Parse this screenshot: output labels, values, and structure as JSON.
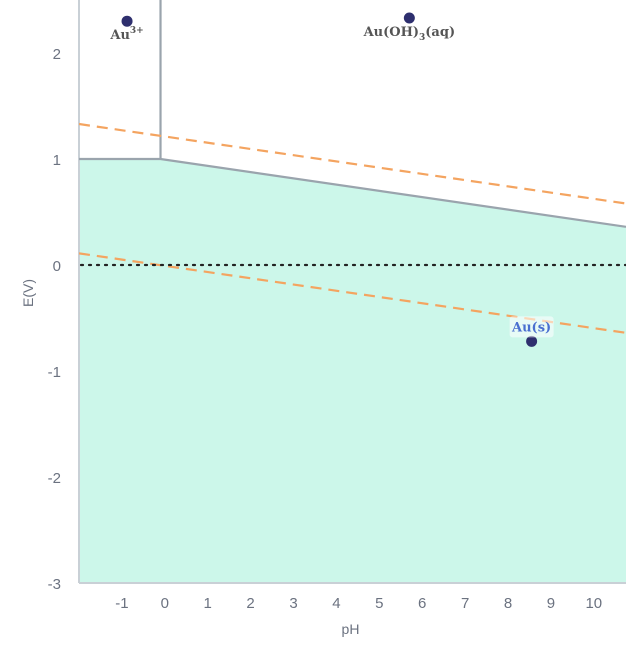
{
  "chart_data": {
    "type": "area",
    "xlabel": "pH",
    "ylabel": "E(V)",
    "xlim": [
      -2,
      10.75
    ],
    "ylim": [
      -3,
      2.5
    ],
    "x_ticks": [
      -1,
      0,
      1,
      2,
      3,
      4,
      5,
      6,
      7,
      8,
      9,
      10
    ],
    "y_ticks": [
      -3,
      -2,
      -1,
      0,
      1,
      2
    ],
    "colors": {
      "solid_region": "#ccf7ea",
      "boundary": "#9aa4ad",
      "water_lines": "#f4a460",
      "zero_line": "#222222",
      "marker": "#2e2f6e",
      "label_dark": "#555555",
      "label_blue": "#4a6fd0"
    },
    "solid_region": {
      "name": "Au(s)",
      "boundary": [
        [
          -2,
          1.0
        ],
        [
          -0.1,
          1.0
        ],
        [
          10.75,
          0.36
        ]
      ]
    },
    "vertical_boundary": {
      "x": -0.1,
      "y_from": 1.0,
      "y_to": 2.5
    },
    "water_lines": [
      {
        "x": [
          -2,
          10.75
        ],
        "y": [
          1.33,
          0.58
        ]
      },
      {
        "x": [
          -2,
          10.75
        ],
        "y": [
          0.11,
          -0.64
        ]
      }
    ],
    "zero_line": {
      "y": 0
    },
    "species": [
      {
        "name": "Au",
        "sup": "3+",
        "marker": [
          -0.88,
          2.3
        ],
        "style": "dark"
      },
      {
        "name": "Au(OH)",
        "sub": "3",
        "suffix": "(aq)",
        "marker": [
          5.7,
          2.33
        ],
        "style": "dark"
      },
      {
        "name": "Au(s)",
        "marker": [
          8.55,
          -0.72
        ],
        "style": "blue"
      }
    ]
  }
}
